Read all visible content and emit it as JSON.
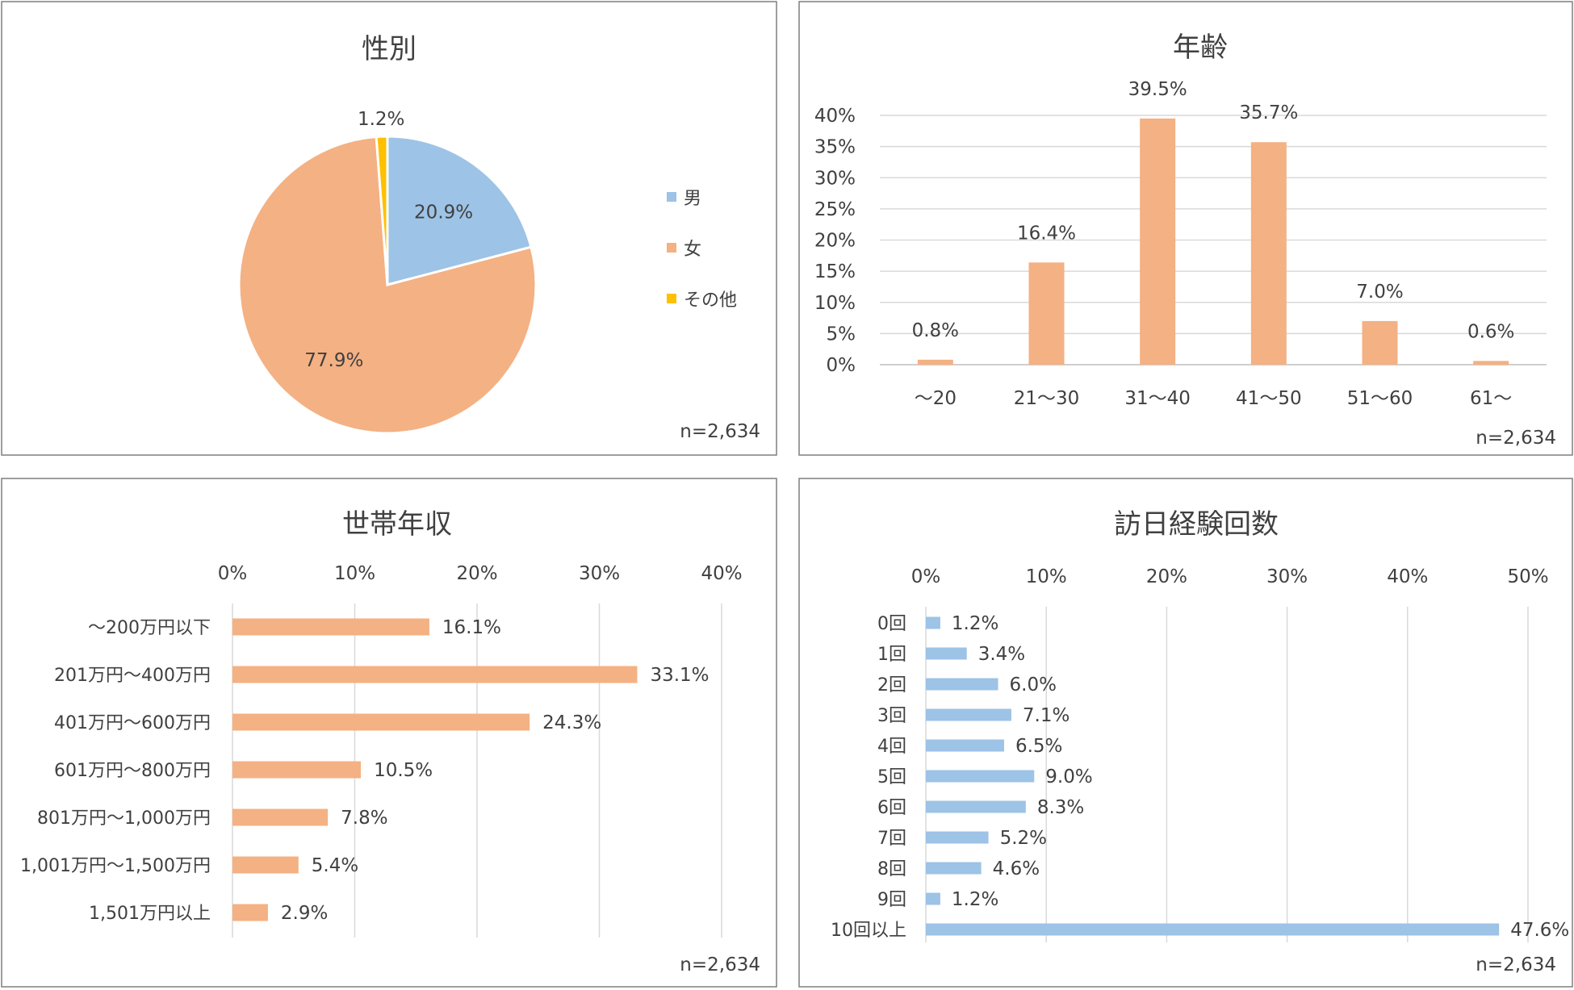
{
  "chart_data": [
    {
      "type": "pie",
      "title": "性別",
      "categories": [
        "男",
        "女",
        "その他"
      ],
      "values": [
        20.9,
        77.9,
        1.2
      ],
      "value_labels": [
        "20.9%",
        "77.9%",
        "1.2%"
      ],
      "colors": [
        "#9dc3e6",
        "#f4b183",
        "#ffc000"
      ],
      "legend_position": "right",
      "note": "n=2,634"
    },
    {
      "type": "bar",
      "title": "年齢",
      "categories": [
        "～20",
        "21～30",
        "31～40",
        "41～50",
        "51～60",
        "61～"
      ],
      "values": [
        0.8,
        16.4,
        39.5,
        35.7,
        7.0,
        0.6
      ],
      "value_labels": [
        "0.8%",
        "16.4%",
        "39.5%",
        "35.7%",
        "7.0%",
        "0.6%"
      ],
      "ylim": [
        0,
        40
      ],
      "yticks": [
        "0%",
        "5%",
        "10%",
        "15%",
        "20%",
        "25%",
        "30%",
        "35%",
        "40%"
      ],
      "grid": true,
      "color": "#f4b183",
      "note": "n=2,634"
    },
    {
      "type": "bar",
      "orientation": "horizontal",
      "title": "世帯年収",
      "categories": [
        "～200万円以下",
        "201万円～400万円",
        "401万円～600万円",
        "601万円～800万円",
        "801万円～1,000万円",
        "1,001万円～1,500万円",
        "1,501万円以上"
      ],
      "values": [
        16.1,
        33.1,
        24.3,
        10.5,
        7.8,
        5.4,
        2.9
      ],
      "value_labels": [
        "16.1%",
        "33.1%",
        "24.3%",
        "10.5%",
        "7.8%",
        "5.4%",
        "2.9%"
      ],
      "xlim": [
        0,
        40
      ],
      "xticks": [
        "0%",
        "10%",
        "20%",
        "30%",
        "40%"
      ],
      "grid": true,
      "color": "#f4b183",
      "note": "n=2,634"
    },
    {
      "type": "bar",
      "orientation": "horizontal",
      "title": "訪日経験回数",
      "categories": [
        "0回",
        "1回",
        "2回",
        "3回",
        "4回",
        "5回",
        "6回",
        "7回",
        "8回",
        "9回",
        "10回以上"
      ],
      "values": [
        1.2,
        3.4,
        6.0,
        7.1,
        6.5,
        9.0,
        8.3,
        5.2,
        4.6,
        1.2,
        47.6
      ],
      "value_labels": [
        "1.2%",
        "3.4%",
        "6.0%",
        "7.1%",
        "6.5%",
        "9.0%",
        "8.3%",
        "5.2%",
        "4.6%",
        "1.2%",
        "47.6%"
      ],
      "xlim": [
        0,
        50
      ],
      "xticks": [
        "0%",
        "10%",
        "20%",
        "30%",
        "40%",
        "50%"
      ],
      "grid": true,
      "color": "#9dc3e6",
      "note": "n=2,634"
    }
  ]
}
